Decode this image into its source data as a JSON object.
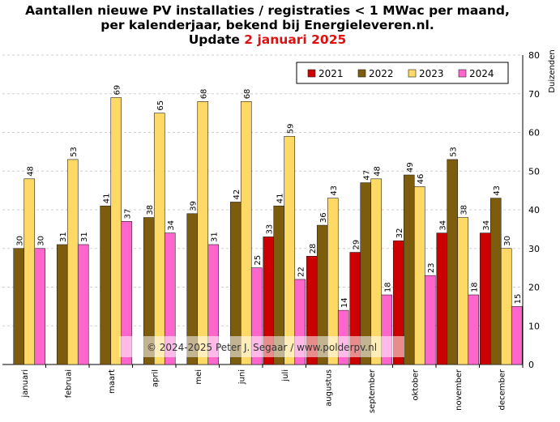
{
  "chart_data": {
    "type": "bar",
    "title": "Aantallen nieuwe PV installaties / registraties < 1 MWac per maand,",
    "subtitle": "per kalenderjaar, bekend bij Energieleveren.nl.",
    "update_prefix": "Update",
    "update_date": "2 januari 2025",
    "ylabel": "Duizenden",
    "ylim": [
      0,
      80
    ],
    "yticks": [
      0,
      10,
      20,
      30,
      40,
      50,
      60,
      70,
      80
    ],
    "grid": true,
    "legend_position": "top-right",
    "categories": [
      "januari",
      "februai",
      "maart",
      "april",
      "mei",
      "juni",
      "juli",
      "augustus",
      "september",
      "oktober",
      "november",
      "december"
    ],
    "series": [
      {
        "name": "2021",
        "color": "#cc0000",
        "values": [
          null,
          null,
          null,
          null,
          null,
          null,
          33,
          28,
          29,
          32,
          34,
          34
        ]
      },
      {
        "name": "2022",
        "color": "#7d5c0e",
        "values": [
          30,
          31,
          41,
          38,
          39,
          42,
          41,
          36,
          47,
          49,
          53,
          43
        ]
      },
      {
        "name": "2023",
        "color": "#ffd966",
        "values": [
          48,
          53,
          69,
          65,
          68,
          68,
          59,
          43,
          48,
          46,
          38,
          30
        ]
      },
      {
        "name": "2024",
        "color": "#ff66cc",
        "values": [
          30,
          31,
          37,
          34,
          31,
          25,
          22,
          14,
          18,
          23,
          18,
          15
        ]
      }
    ],
    "watermark": "© 2024-2025 Peter J. Segaar / www.polderpv.nl"
  }
}
